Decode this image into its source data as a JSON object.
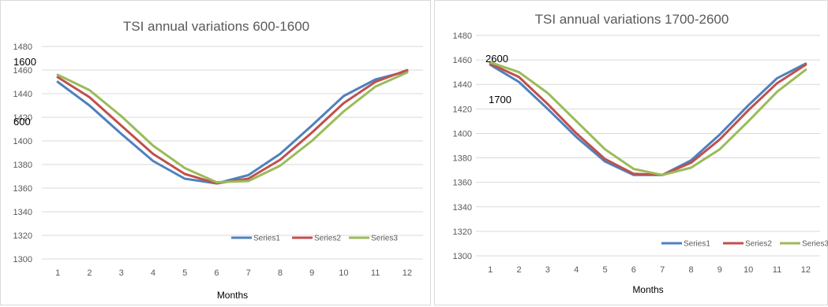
{
  "chart_data": [
    {
      "type": "line",
      "title": "TSI annual variations 600-1600",
      "xlabel": "Months",
      "ylabel": "",
      "ylim": [
        1300,
        1480
      ],
      "yticks": [
        1300,
        1320,
        1340,
        1360,
        1380,
        1400,
        1420,
        1440,
        1460,
        1480
      ],
      "x": [
        1,
        2,
        3,
        4,
        5,
        6,
        7,
        8,
        9,
        10,
        11,
        12
      ],
      "grid": "horizontal",
      "legend_position": "bottom-right",
      "annotations": [
        "1600",
        "600"
      ],
      "colors": [
        "#4F81BD",
        "#C0504D",
        "#9BBB59"
      ],
      "series": [
        {
          "name": "Series1",
          "values": [
            1450,
            1430,
            1406,
            1383,
            1368,
            1364,
            1371,
            1389,
            1413,
            1438,
            1452,
            1459
          ]
        },
        {
          "name": "Series2",
          "values": [
            1454,
            1437,
            1413,
            1389,
            1372,
            1364,
            1368,
            1384,
            1407,
            1432,
            1450,
            1460
          ]
        },
        {
          "name": "Series3",
          "values": [
            1456,
            1443,
            1421,
            1396,
            1377,
            1365,
            1366,
            1379,
            1400,
            1425,
            1446,
            1458
          ]
        }
      ]
    },
    {
      "type": "line",
      "title": "TSI annual variations 1700-2600",
      "xlabel": "Months",
      "ylabel": "",
      "ylim": [
        1300,
        1480
      ],
      "yticks": [
        1300,
        1320,
        1340,
        1360,
        1380,
        1400,
        1420,
        1440,
        1460,
        1480
      ],
      "x": [
        1,
        2,
        3,
        4,
        5,
        6,
        7,
        8,
        9,
        10,
        11,
        12
      ],
      "grid": "horizontal",
      "legend_position": "bottom-right",
      "annotations": [
        "2600",
        "1700"
      ],
      "colors": [
        "#4F81BD",
        "#C0504D",
        "#9BBB59"
      ],
      "series": [
        {
          "name": "Series1",
          "values": [
            1456,
            1442,
            1420,
            1397,
            1377,
            1366,
            1366,
            1378,
            1399,
            1423,
            1445,
            1457
          ]
        },
        {
          "name": "Series2",
          "values": [
            1457,
            1446,
            1424,
            1400,
            1379,
            1367,
            1366,
            1376,
            1395,
            1419,
            1441,
            1456
          ]
        },
        {
          "name": "Series3",
          "values": [
            1458,
            1450,
            1433,
            1410,
            1387,
            1371,
            1366,
            1372,
            1387,
            1410,
            1434,
            1452
          ]
        }
      ]
    }
  ]
}
